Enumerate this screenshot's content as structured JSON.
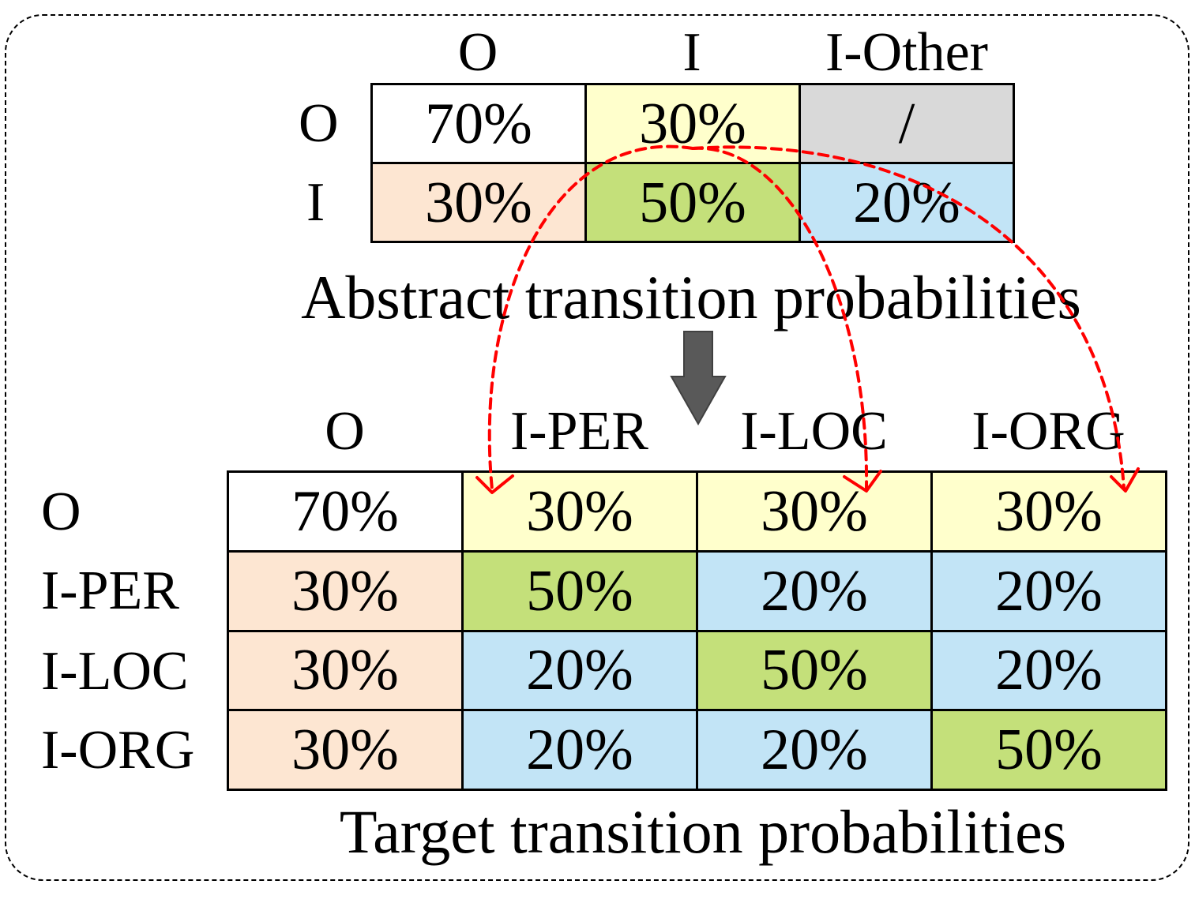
{
  "colors": {
    "white": "#ffffff",
    "yellow": "#ffffcc",
    "gray": "#d9d9d9",
    "peach": "#fde6d2",
    "green": "#c4e07a",
    "blue": "#c2e4f6",
    "arrow_red": "#ff0000",
    "big_arrow_gray": "#595959"
  },
  "abstract": {
    "caption": "Abstract transition probabilities",
    "col_labels": [
      "O",
      "I",
      "I-Other"
    ],
    "row_labels": [
      "O",
      "I"
    ],
    "rows": [
      [
        {
          "text": "70%",
          "color": "white"
        },
        {
          "text": "30%",
          "color": "yellow"
        },
        {
          "text": "/",
          "color": "gray"
        }
      ],
      [
        {
          "text": "30%",
          "color": "peach"
        },
        {
          "text": "50%",
          "color": "green"
        },
        {
          "text": "20%",
          "color": "blue"
        }
      ]
    ]
  },
  "target": {
    "caption": "Target transition probabilities",
    "col_labels": [
      "O",
      "I-PER",
      "I-LOC",
      "I-ORG"
    ],
    "row_labels": [
      "O",
      "I-PER",
      "I-LOC",
      "I-ORG"
    ],
    "rows": [
      [
        {
          "text": "70%",
          "color": "white"
        },
        {
          "text": "30%",
          "color": "yellow"
        },
        {
          "text": "30%",
          "color": "yellow"
        },
        {
          "text": "30%",
          "color": "yellow"
        }
      ],
      [
        {
          "text": "30%",
          "color": "peach"
        },
        {
          "text": "50%",
          "color": "green"
        },
        {
          "text": "20%",
          "color": "blue"
        },
        {
          "text": "20%",
          "color": "blue"
        }
      ],
      [
        {
          "text": "30%",
          "color": "peach"
        },
        {
          "text": "20%",
          "color": "blue"
        },
        {
          "text": "50%",
          "color": "green"
        },
        {
          "text": "20%",
          "color": "blue"
        }
      ],
      [
        {
          "text": "30%",
          "color": "peach"
        },
        {
          "text": "20%",
          "color": "blue"
        },
        {
          "text": "20%",
          "color": "blue"
        },
        {
          "text": "50%",
          "color": "green"
        }
      ]
    ]
  }
}
